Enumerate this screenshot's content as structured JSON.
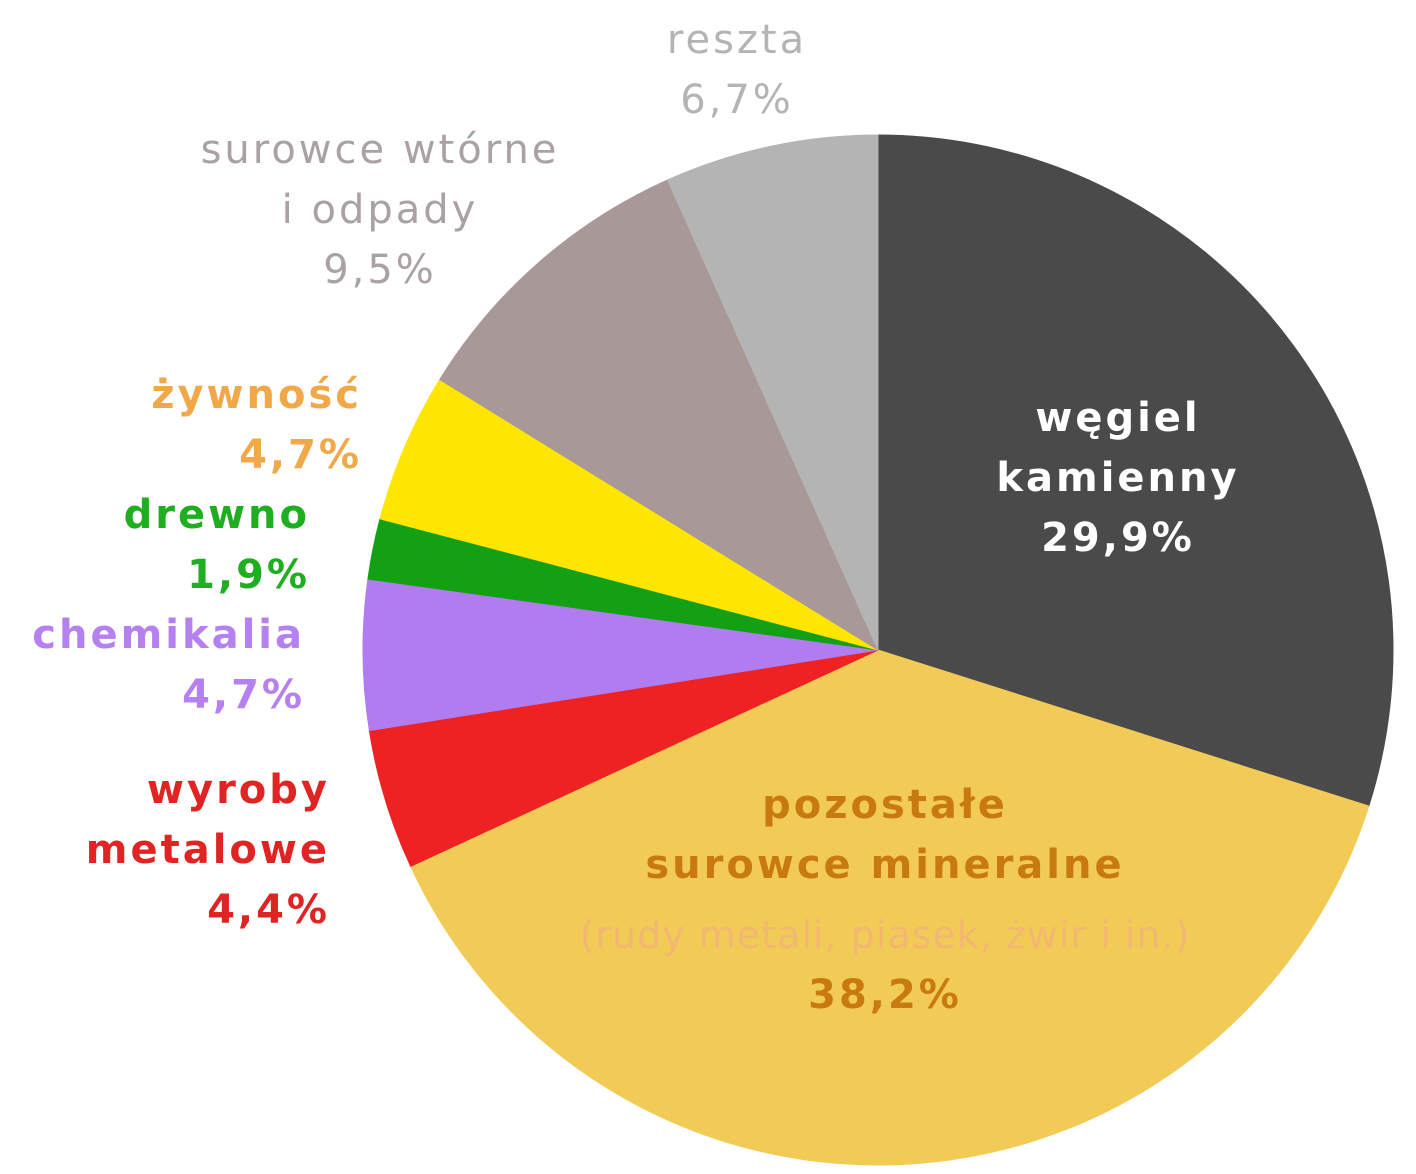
{
  "chart_data": {
    "type": "pie",
    "categories": [
      "węgiel\nkamienny",
      "pozostałe\nsurowce mineralne",
      "wyroby\nmetalowe",
      "chemikalia",
      "drewno",
      "żywność",
      "surowce wtórne\ni odpady",
      "reszta"
    ],
    "values": [
      29.9,
      38.2,
      4.4,
      4.7,
      1.9,
      4.7,
      9.5,
      6.7
    ],
    "value_labels": [
      "29,9%",
      "38,2%",
      "4,4%",
      "4,7%",
      "1,9%",
      "4,7%",
      "9,5%",
      "6,7%"
    ],
    "colors": [
      "#4a4a4a",
      "#f2cb57",
      "#ee2222",
      "#b07cf0",
      "#14a014",
      "#ffe600",
      "#a89898",
      "#b4b4b4"
    ],
    "label_colors": [
      "#ffffff",
      "#c87a10",
      "#e02424",
      "#b580f0",
      "#1fae1f",
      "#f0a848",
      "#aaa2a2",
      "#b4b4b4"
    ],
    "annotation": "(rudy metali, piasek, żwir i in.)",
    "start_angle": 0,
    "direction": "clockwise"
  }
}
